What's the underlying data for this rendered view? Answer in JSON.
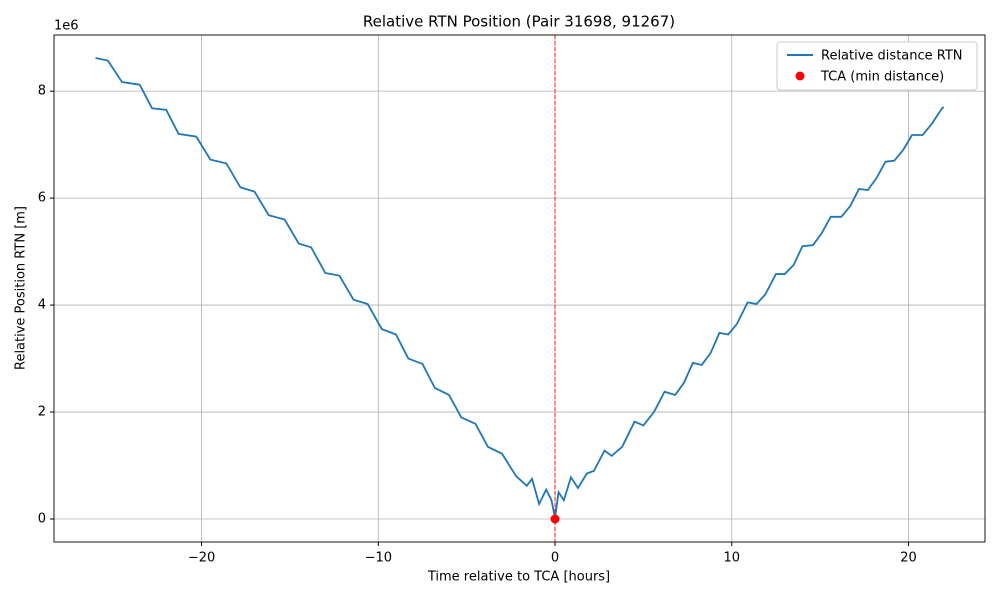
{
  "chart_data": {
    "type": "line",
    "title": "Relative RTN Position (Pair 31698, 91267)",
    "xlabel": "Time relative to TCA [hours]",
    "ylabel": "Relative Position RTN [m]",
    "y_offset_label": "1e6",
    "x": [
      -26,
      -25.3,
      -24.5,
      -23.5,
      -22.8,
      -22,
      -21.3,
      -20.3,
      -19.5,
      -18.6,
      -17.8,
      -17,
      -16.2,
      -15.3,
      -14.5,
      -13.8,
      -13,
      -12.2,
      -11.4,
      -10.6,
      -9.8,
      -9,
      -8.3,
      -7.5,
      -6.8,
      -6,
      -5.3,
      -4.5,
      -3.8,
      -3,
      -2.2,
      -1.6,
      -1.3,
      -0.9,
      -0.5,
      -0.2,
      0,
      0.2,
      0.5,
      0.9,
      1.3,
      1.8,
      2.2,
      2.8,
      3.2,
      3.8,
      4.5,
      5,
      5.6,
      6.2,
      6.8,
      7.3,
      7.8,
      8.3,
      8.8,
      9.3,
      9.8,
      10.3,
      10.9,
      11.4,
      11.9,
      12.5,
      13,
      13.5,
      14,
      14.6,
      15.1,
      15.6,
      16.2,
      16.7,
      17.2,
      17.7,
      18.2,
      18.7,
      19.2,
      19.7,
      20.2,
      20.8,
      21.3,
      21.9,
      22
    ],
    "series": [
      {
        "name": "Relative distance RTN",
        "color": "#1f77b4",
        "values": [
          8.62,
          8.57,
          8.17,
          8.12,
          7.68,
          7.65,
          7.2,
          7.15,
          6.72,
          6.65,
          6.2,
          6.12,
          5.68,
          5.6,
          5.15,
          5.08,
          4.6,
          4.55,
          4.1,
          4.02,
          3.55,
          3.45,
          3.0,
          2.9,
          2.45,
          2.32,
          1.9,
          1.78,
          1.35,
          1.22,
          0.8,
          0.62,
          0.75,
          0.28,
          0.55,
          0.35,
          0.02,
          0.5,
          0.35,
          0.78,
          0.58,
          0.85,
          0.9,
          1.28,
          1.18,
          1.35,
          1.82,
          1.75,
          2.0,
          2.38,
          2.32,
          2.55,
          2.92,
          2.88,
          3.1,
          3.48,
          3.45,
          3.65,
          4.05,
          4.02,
          4.2,
          4.58,
          4.58,
          4.75,
          5.1,
          5.12,
          5.35,
          5.65,
          5.65,
          5.85,
          6.17,
          6.15,
          6.38,
          6.68,
          6.7,
          6.9,
          7.18,
          7.18,
          7.38,
          7.68,
          7.7
        ]
      }
    ],
    "marker": {
      "name": "TCA (min distance)",
      "color": "#ff0000",
      "x": 0,
      "y": 0
    },
    "vline_color": "#ff0000",
    "xlim": [
      -28.35,
      24.33
    ],
    "ylim": [
      -0.43,
      9.05
    ],
    "xticks": [
      {
        "value": -20,
        "label": "−20"
      },
      {
        "value": -10,
        "label": "−10"
      },
      0,
      10,
      20
    ],
    "yticks": [
      0,
      2,
      4,
      6,
      8
    ],
    "grid": true,
    "legend": "upper right"
  }
}
